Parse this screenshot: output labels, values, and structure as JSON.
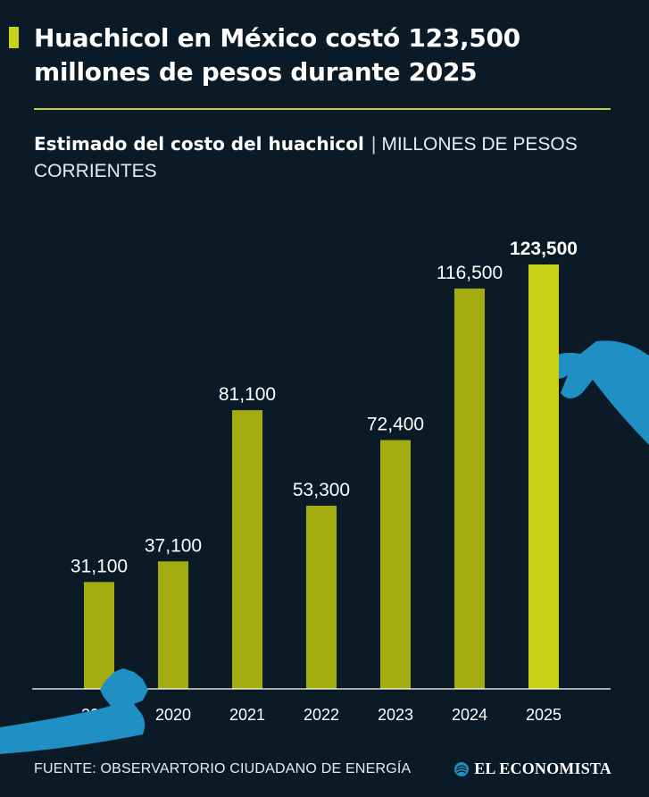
{
  "header": {
    "title": "Huachicol en México costó 123,500 millones de pesos durante 2025",
    "subtitle_strong": "Estimado del costo del huachicol",
    "subtitle_separator": "|",
    "subtitle_unit": "MILLONES DE PESOS CORRIENTES"
  },
  "footer": {
    "source": "FUENTE: OBSERVARTORIO CIUDADANO DE ENERGÍA",
    "brand": "EL ECONOMISTA"
  },
  "colors": {
    "background": "#0a1b27",
    "bar": "#a4ad0f",
    "bar_highlight": "#c9d219",
    "accent_blue": "#1f8fc4",
    "rule": "#c9d219"
  },
  "chart_data": {
    "type": "bar",
    "categories": [
      "2019",
      "2020",
      "2021",
      "2022",
      "2023",
      "2024",
      "2025"
    ],
    "values": [
      31100,
      37100,
      81100,
      53300,
      72400,
      116500,
      123500
    ],
    "data_labels": [
      "31,100",
      "37,100",
      "81,100",
      "53,300",
      "72,400",
      "116,500",
      "123,500"
    ],
    "highlight_index": 6,
    "ylim": [
      0,
      123500
    ],
    "grid": false,
    "title": "Estimado del costo del huachicol",
    "xlabel": "",
    "ylabel": ""
  }
}
